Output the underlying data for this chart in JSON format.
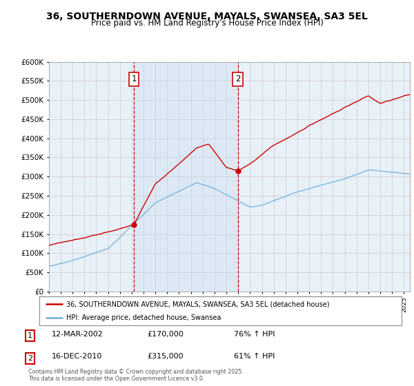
{
  "title_line1": "36, SOUTHERNDOWN AVENUE, MAYALS, SWANSEA, SA3 5EL",
  "title_line2": "Price paid vs. HM Land Registry's House Price Index (HPI)",
  "x_start_year": 1995,
  "x_end_year": 2025,
  "y_min": 0,
  "y_max": 600000,
  "y_ticks": [
    0,
    50000,
    100000,
    150000,
    200000,
    250000,
    300000,
    350000,
    400000,
    450000,
    500000,
    550000,
    600000
  ],
  "hpi_color": "#6baed6",
  "price_color": "#cc0000",
  "vline_color": "#cc0000",
  "shade_color": "#ddeeff",
  "background_color": "#ffffff",
  "grid_color": "#cccccc",
  "plot_bg_color": "#e8f0f8",
  "sale1_year": 2002.19,
  "sale1_price": 170000,
  "sale2_year": 2010.96,
  "sale2_price": 315000,
  "legend_label_price": "36, SOUTHERNDOWN AVENUE, MAYALS, SWANSEA, SA3 5EL (detached house)",
  "legend_label_hpi": "HPI: Average price, detached house, Swansea",
  "annotation1_label": "1",
  "annotation2_label": "2",
  "note1_box_label": "1",
  "note1_date": "12-MAR-2002",
  "note1_price": "£170,000",
  "note1_hpi": "76% ↑ HPI",
  "note2_box_label": "2",
  "note2_date": "16-DEC-2010",
  "note2_price": "£315,000",
  "note2_hpi": "61% ↑ HPI",
  "footer": "Contains HM Land Registry data © Crown copyright and database right 2025.\nThis data is licensed under the Open Government Licence v3.0."
}
